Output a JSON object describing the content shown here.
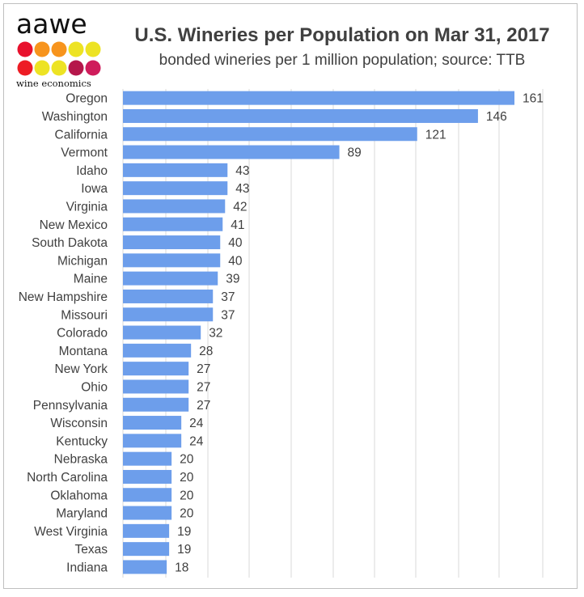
{
  "logo": {
    "wordmark": "aawe",
    "tagline": "wine economics",
    "dot_colors": [
      "#e8112d",
      "#f7941d",
      "#f7941d",
      "#ede324",
      "#ede324",
      "#ed1c24",
      "#ede324",
      "#ede324",
      "#b5174b",
      "#cf1c5b"
    ]
  },
  "chart_data": {
    "type": "bar",
    "orientation": "horizontal",
    "title": "U.S. Wineries per Population on Mar 31, 2017",
    "subtitle": "bonded wineries per 1 million population; source: TTB",
    "xlabel": "",
    "ylabel": "",
    "categories": [
      "Oregon",
      "Washington",
      "California",
      "Vermont",
      "Idaho",
      "Iowa",
      "Virginia",
      "New Mexico",
      "South Dakota",
      "Michigan",
      "Maine",
      "New Hampshire",
      "Missouri",
      "Colorado",
      "Montana",
      "New York",
      "Ohio",
      "Pennsylvania",
      "Wisconsin",
      "Kentucky",
      "Nebraska",
      "North Carolina",
      "Oklahoma",
      "Maryland",
      "West Virginia",
      "Texas",
      "Indiana"
    ],
    "values": [
      161,
      146,
      121,
      89,
      43,
      43,
      42,
      41,
      40,
      40,
      39,
      37,
      37,
      32,
      28,
      27,
      27,
      27,
      24,
      24,
      20,
      20,
      20,
      20,
      19,
      19,
      18
    ],
    "xlim": [
      0,
      161
    ],
    "grid": true,
    "bar_color": "#6d9eeb",
    "legend": "none"
  }
}
